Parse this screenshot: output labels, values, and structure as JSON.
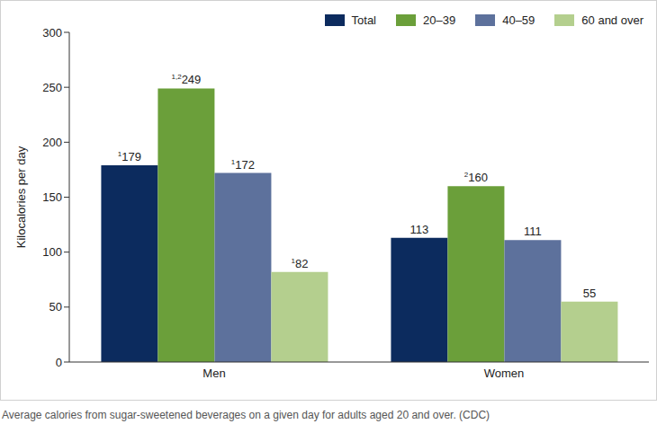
{
  "chart_data": {
    "type": "bar",
    "caption": "Average calories from sugar-sweetened beverages on a given day for adults aged 20 and over. (CDC)",
    "y_label": "Kilocalories per day",
    "categories": [
      "Men",
      "Women"
    ],
    "series": [
      {
        "name": "Total",
        "color": "#0c2b5e",
        "values": [
          179,
          113
        ],
        "footnotes": [
          "1",
          null
        ]
      },
      {
        "name": "20–39",
        "color": "#6b9f3a",
        "values": [
          249,
          160
        ],
        "footnotes": [
          "1,2",
          "2"
        ]
      },
      {
        "name": "40–59",
        "color": "#5d719c",
        "values": [
          172,
          111
        ],
        "footnotes": [
          "1",
          null
        ]
      },
      {
        "name": "60 and over",
        "color": "#b4cf8e",
        "values": [
          82,
          55
        ],
        "footnotes": [
          "1",
          null
        ]
      }
    ],
    "ylim": [
      0,
      300
    ],
    "yticks": [
      0,
      50,
      100,
      150,
      200,
      250,
      300
    ],
    "grid": false,
    "legend": "top-right",
    "data_labels": true
  }
}
